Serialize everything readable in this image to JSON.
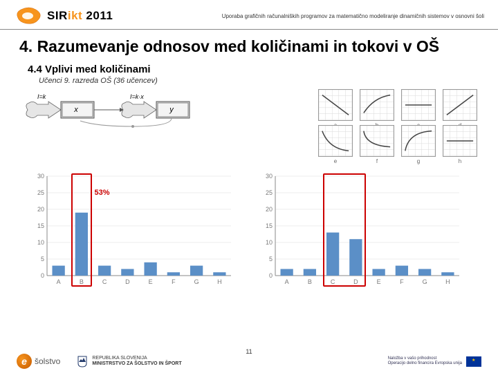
{
  "header": {
    "logo_main": "SIR",
    "logo_accent": "ikt",
    "year": "2011",
    "subtitle": "Uporaba grafičnih računalniških programov za matematično modeliranje dinamičnih sistemov v osnovni šoli"
  },
  "title": "4. Razumevanje odnosov med količinami in tokovi v OŠ",
  "subtitle": "4.4 Vplivi med količinami",
  "note": "Učenci 9. razreda OŠ (36 učencev)",
  "flow": {
    "label_left": "I=k",
    "box_left": "x",
    "label_right": "I=k·x",
    "box_right": "y"
  },
  "minis": {
    "labels": [
      "a",
      "b",
      "c",
      "d",
      "e",
      "f",
      "g",
      "h"
    ],
    "curves": [
      "M5 8 L45 38",
      "M5 35 Q20 12 45 8",
      "M5 23 L45 23",
      "M5 38 L45 8",
      "M5 8 Q15 35 45 38",
      "M5 8 Q8 30 45 32",
      "M5 38 Q10 10 45 8",
      "M5 23 L45 23"
    ],
    "grid_color": "#d8d8d8",
    "curve_color": "#444"
  },
  "chart_left": {
    "percent_label": "53%",
    "highlight_index": 1,
    "ymax": 30,
    "ytick": 5,
    "categories": [
      "A",
      "B",
      "C",
      "D",
      "E",
      "F",
      "G",
      "H"
    ],
    "values": [
      3,
      19,
      3,
      2,
      4,
      1,
      3,
      1
    ],
    "bar_color": "#5b8fc7",
    "axis_color": "#888",
    "text_color": "#7a7a7a"
  },
  "chart_right": {
    "highlight_indices": [
      2,
      3
    ],
    "ymax": 30,
    "ytick": 5,
    "categories": [
      "A",
      "B",
      "C",
      "D",
      "E",
      "F",
      "G",
      "H"
    ],
    "values": [
      2,
      2,
      13,
      11,
      2,
      3,
      2,
      1
    ],
    "bar_color": "#5b8fc7",
    "axis_color": "#888",
    "text_color": "#7a7a7a"
  },
  "footer": {
    "solstvo": "šolstvo",
    "ministry_l1": "REPUBLIKA SLOVENIJA",
    "ministry_l2": "MINISTRSTVO ZA ŠOLSTVO IN ŠPORT",
    "eu_l1": "Naložba v vašo prihodnost",
    "eu_l2": "Operacijo delno financira Evropska unija"
  },
  "page_num": "11"
}
